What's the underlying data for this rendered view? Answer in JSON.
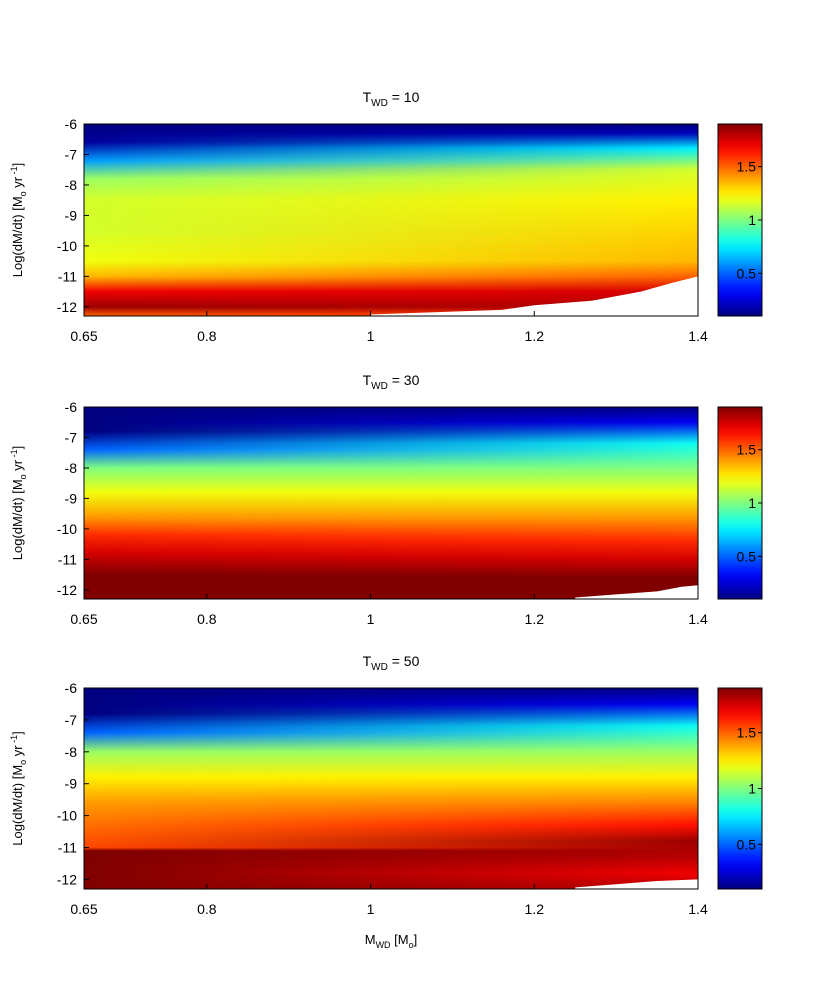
{
  "chart_data": [
    {
      "type": "heatmap",
      "title": "T_WD = 10",
      "title_main": "T",
      "title_sub": "WD",
      "title_rest": " = 10",
      "xlabel": "",
      "ylabel": "Log(dM/dt) [M_o yr^-1]",
      "x_ticks": [
        "0.65",
        "0.8",
        "1",
        "1.2",
        "1.4"
      ],
      "y_ticks": [
        "-6",
        "-7",
        "-8",
        "-9",
        "-10",
        "-11",
        "-12"
      ],
      "xlim": [
        0.65,
        1.4
      ],
      "ylim": [
        -12.3,
        -6
      ],
      "colorbar": {
        "range": [
          0.1,
          1.9
        ],
        "ticks": [
          "0.5",
          "1",
          "1.5"
        ],
        "colormap": "jet"
      },
      "value_profile_left": [
        [
          -6.0,
          0.05
        ],
        [
          -6.6,
          0.15
        ],
        [
          -7.2,
          0.6
        ],
        [
          -7.8,
          1.05
        ],
        [
          -8.5,
          1.15
        ],
        [
          -9.5,
          1.15
        ],
        [
          -10.5,
          1.2
        ],
        [
          -11.0,
          1.35
        ],
        [
          -11.5,
          1.7
        ],
        [
          -12.0,
          1.85
        ],
        [
          -12.3,
          1.5
        ]
      ],
      "value_profile_right": [
        [
          -6.0,
          0.05
        ],
        [
          -6.3,
          0.2
        ],
        [
          -6.8,
          0.75
        ],
        [
          -7.5,
          1.15
        ],
        [
          -8.5,
          1.25
        ],
        [
          -9.5,
          1.3
        ],
        [
          -10.5,
          1.35
        ],
        [
          -11.0,
          1.5
        ],
        [
          -11.5,
          1.75
        ],
        [
          -12.0,
          1.8
        ],
        [
          -12.3,
          1.6
        ]
      ],
      "blank_region": [
        [
          1.0,
          -12.25
        ],
        [
          1.16,
          -12.1
        ],
        [
          1.2,
          -11.95
        ],
        [
          1.27,
          -11.8
        ],
        [
          1.33,
          -11.5
        ],
        [
          1.37,
          -11.2
        ],
        [
          1.4,
          -11.0
        ]
      ]
    },
    {
      "type": "heatmap",
      "title": "T_WD = 30",
      "title_main": "T",
      "title_sub": "WD",
      "title_rest": " = 30",
      "xlabel": "",
      "ylabel": "Log(dM/dt) [M_o yr^-1]",
      "x_ticks": [
        "0.65",
        "0.8",
        "1",
        "1.2",
        "1.4"
      ],
      "y_ticks": [
        "-6",
        "-7",
        "-8",
        "-9",
        "-10",
        "-11",
        "-12"
      ],
      "xlim": [
        0.65,
        1.4
      ],
      "ylim": [
        -12.3,
        -6
      ],
      "colorbar": {
        "range": [
          0.1,
          1.9
        ],
        "ticks": [
          "0.5",
          "1",
          "1.5"
        ],
        "colormap": "jet"
      },
      "value_profile_left": [
        [
          -6.0,
          0.05
        ],
        [
          -6.8,
          0.1
        ],
        [
          -7.4,
          0.5
        ],
        [
          -8.0,
          1.0
        ],
        [
          -8.8,
          1.2
        ],
        [
          -9.6,
          1.4
        ],
        [
          -10.2,
          1.6
        ],
        [
          -10.8,
          1.75
        ],
        [
          -11.5,
          1.9
        ],
        [
          -12.3,
          2.0
        ]
      ],
      "value_profile_right": [
        [
          -6.0,
          0.05
        ],
        [
          -6.5,
          0.3
        ],
        [
          -7.2,
          0.8
        ],
        [
          -8.0,
          1.0
        ],
        [
          -8.8,
          1.2
        ],
        [
          -9.6,
          1.4
        ],
        [
          -10.4,
          1.6
        ],
        [
          -11.0,
          1.75
        ],
        [
          -11.6,
          1.9
        ],
        [
          -12.3,
          2.0
        ]
      ],
      "blank_region": [
        [
          1.25,
          -12.25
        ],
        [
          1.3,
          -12.15
        ],
        [
          1.35,
          -12.05
        ],
        [
          1.38,
          -11.9
        ],
        [
          1.4,
          -11.85
        ]
      ]
    },
    {
      "type": "heatmap",
      "title": "T_WD = 50",
      "title_main": "T",
      "title_sub": "WD",
      "title_rest": " = 50",
      "xlabel": "M_WD [M_o]",
      "xlabel_main": "M",
      "xlabel_sub": "WD",
      "xlabel_rest": " [M",
      "xlabel_sub2": "o",
      "xlabel_end": "]",
      "ylabel": "Log(dM/dt) [M_o yr^-1]",
      "x_ticks": [
        "0.65",
        "0.8",
        "1",
        "1.2",
        "1.4"
      ],
      "y_ticks": [
        "-6",
        "-7",
        "-8",
        "-9",
        "-10",
        "-11",
        "-12"
      ],
      "xlim": [
        0.65,
        1.4
      ],
      "ylim": [
        -12.3,
        -6
      ],
      "colorbar": {
        "range": [
          0.1,
          1.9
        ],
        "ticks": [
          "0.5",
          "1",
          "1.5"
        ],
        "colormap": "jet"
      },
      "value_profile_left": [
        [
          -6.0,
          0.05
        ],
        [
          -6.8,
          0.1
        ],
        [
          -7.4,
          0.5
        ],
        [
          -8.0,
          1.05
        ],
        [
          -8.8,
          1.25
        ],
        [
          -9.6,
          1.4
        ],
        [
          -10.5,
          1.5
        ],
        [
          -11.0,
          1.55
        ],
        [
          -11.1,
          1.95
        ],
        [
          -12.3,
          2.0
        ]
      ],
      "value_profile_right": [
        [
          -6.0,
          0.05
        ],
        [
          -6.5,
          0.3
        ],
        [
          -7.2,
          0.8
        ],
        [
          -8.0,
          1.05
        ],
        [
          -8.8,
          1.25
        ],
        [
          -9.6,
          1.45
        ],
        [
          -10.3,
          1.65
        ],
        [
          -10.8,
          1.85
        ],
        [
          -11.3,
          1.8
        ],
        [
          -11.8,
          1.7
        ],
        [
          -12.3,
          1.8
        ]
      ],
      "blank_region": [
        [
          1.25,
          -12.25
        ],
        [
          1.3,
          -12.15
        ],
        [
          1.35,
          -12.05
        ],
        [
          1.4,
          -12.0
        ]
      ]
    }
  ],
  "ylabel_parts": {
    "pre": "Log(dM/dt) [M",
    "sub": "o",
    "mid": " yr",
    "sup": " -1",
    "post": "]"
  }
}
